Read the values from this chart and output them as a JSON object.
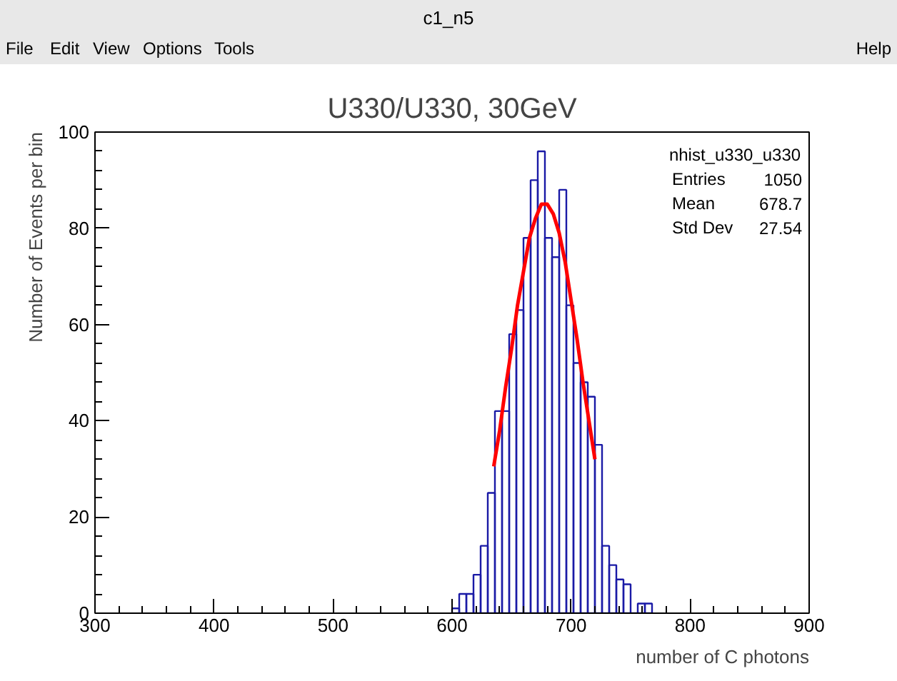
{
  "chart_data": {
    "type": "histogram",
    "title": "U330/U330, 30GeV",
    "xlabel": "number of C photons",
    "ylabel": "Number of Events per bin",
    "annotations": [
      "c1_n5",
      "File",
      "Edit",
      "View",
      "Options",
      "Tools",
      "Help",
      "nhist_u330_u330",
      "Entries",
      "1050",
      "Mean",
      "678.7",
      "Std Dev",
      "27.54"
    ],
    "series": [
      {
        "type": "histogram",
        "color": "#1a1aa6",
        "bins": [
          600,
          606,
          612,
          618,
          624,
          630,
          636,
          642,
          648,
          654,
          660,
          666,
          672,
          678,
          684,
          690,
          696,
          702,
          708,
          714,
          720,
          726,
          732,
          738,
          744,
          750,
          756,
          762,
          768
        ],
        "values": [
          1,
          4,
          4,
          8,
          14,
          25,
          42,
          42,
          58,
          63,
          78,
          90,
          96,
          78,
          74,
          88,
          64,
          52,
          48,
          45,
          35,
          14,
          10,
          7,
          6,
          0,
          2,
          2
        ]
      },
      {
        "type": "line",
        "color": "#ff0000",
        "x": [
          635,
          640,
          645,
          650,
          655,
          660,
          665,
          670,
          675,
          680,
          685,
          690,
          695,
          700,
          705,
          710,
          715,
          720
        ],
        "values": [
          30.5,
          38,
          47,
          55,
          64,
          71,
          78,
          82,
          85,
          85,
          83,
          79,
          73,
          65,
          57,
          48,
          40,
          32
        ]
      }
    ],
    "xlim": [
      300,
      900
    ],
    "xticks": [
      300,
      400,
      500,
      600,
      700,
      800,
      900
    ],
    "ylim": [
      0,
      100
    ],
    "yticks": [
      0,
      20,
      40,
      60,
      80,
      100
    ],
    "grid": false
  }
}
